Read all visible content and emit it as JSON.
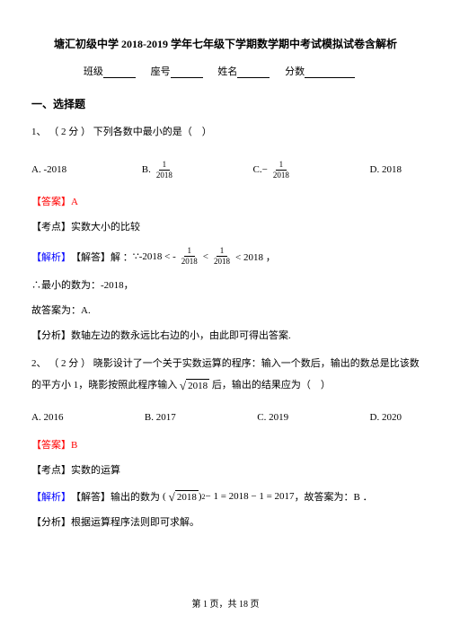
{
  "header": {
    "title": "塘汇初级中学 2018-2019 学年七年级下学期数学期中考试模拟试卷含解析",
    "info": {
      "class_label": "班级",
      "seat_label": "座号",
      "name_label": "姓名",
      "score_label": "分数"
    }
  },
  "section1_title": "一、选择题",
  "q1": {
    "number": "1、",
    "points": "（ 2 分 ）",
    "text": "下列各数中最小的是（　）",
    "options": {
      "a_label": "A. -2018",
      "b_label": "B.",
      "b_num": "1",
      "b_den": "2018",
      "c_label": "C. ",
      "c_neg": "−",
      "c_num": "1",
      "c_den": "2018",
      "d_label": "D. 2018"
    },
    "answer_label": "【答案】",
    "answer_value": "A",
    "point_label": "【考点】",
    "point_text": "实数大小的比较",
    "analysis_label": "【解析】",
    "analysis_sub": "【解答】解 ：",
    "analysis_text1": "∵-2018 < -",
    "a_num1": "1",
    "a_den1": "2018",
    "analysis_lt": " < ",
    "a_num2": "1",
    "a_den2": "2018",
    "analysis_end": " < 2018 ，",
    "conclusion": "∴最小的数为：-2018，",
    "so_answer": "故答案为：A.",
    "analysis2_label": "【分析】",
    "analysis2_text": "数轴左边的数永远比右边的小，由此即可得出答案."
  },
  "q2": {
    "number": "2、",
    "points": "（ 2 分 ）",
    "text1": "晓影设计了一个关于实数运算的程序：输入一个数后，输出的数总是比该数的平方小 1，晓影按照此程序输入",
    "sqrt_val": "2018",
    "text2": "后，输出的结果应为（　）",
    "options": {
      "a": "A. 2016",
      "b": "B. 2017",
      "c": "C. 2019",
      "d": "D. 2020"
    },
    "answer_label": "【答案】",
    "answer_value": "B",
    "point_label": "【考点】",
    "point_text": "实数的运算",
    "analysis_label": "【解析】",
    "analysis_sub": "【解答】输出的数为",
    "expr_sqrt": "2018",
    "expr_rest": "− 1 = 2018 − 1 = 2017",
    "expr_end": "，故答案为：B ．",
    "analysis2_label": "【分析】",
    "analysis2_text": "根据运算程序法则即可求解。"
  },
  "footer": {
    "text": "第 1 页，共 18 页"
  },
  "style": {
    "underline_short": "36px",
    "underline_long": "56px"
  }
}
